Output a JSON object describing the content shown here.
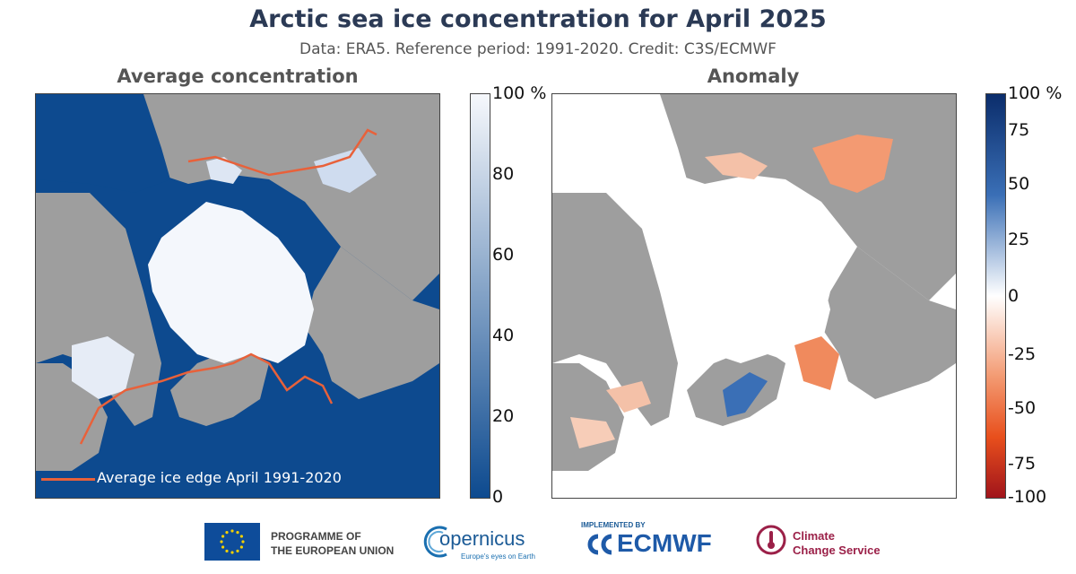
{
  "header": {
    "title": "Arctic sea ice concentration for April 2025",
    "subtitle": "Data: ERA5.  Reference period: 1991-2020.  Credit: C3S/ECMWF"
  },
  "left_panel": {
    "title": "Average concentration",
    "legend_label": "Average ice edge April 1991-2020",
    "colorbar": {
      "ticks": [
        "100",
        "80",
        "60",
        "40",
        "20",
        "0"
      ],
      "unit": "%",
      "range": [
        0,
        100
      ],
      "colors": [
        "#f6f8fc",
        "#0d4a8f"
      ]
    }
  },
  "right_panel": {
    "title": "Anomaly",
    "colorbar": {
      "ticks": [
        "100",
        "75",
        "50",
        "25",
        "0",
        "-25",
        "-50",
        "-75",
        "-100"
      ],
      "unit": "%",
      "range": [
        -100,
        100
      ],
      "colors": [
        "#0b2d6b",
        "#ffffff",
        "#a0141b"
      ]
    }
  },
  "colors": {
    "land": "#9e9e9e",
    "ocean": "#0d4a8f",
    "ice": "#f4f7fc",
    "ice_edge_line": "#e8613a",
    "anomaly_negative": "#f08a5d",
    "anomaly_positive": "#3a6fb6"
  },
  "footer": {
    "eu_label_line1": "PROGRAMME OF",
    "eu_label_line2": "THE EUROPEAN UNION",
    "copernicus_name": "opernicus",
    "copernicus_tagline": "Europe's eyes on Earth",
    "ecmwf_implemented_by": "IMPLEMENTED BY",
    "ecmwf_name": "ECMWF",
    "c3s_line1": "Climate",
    "c3s_line2": "Change Service"
  }
}
